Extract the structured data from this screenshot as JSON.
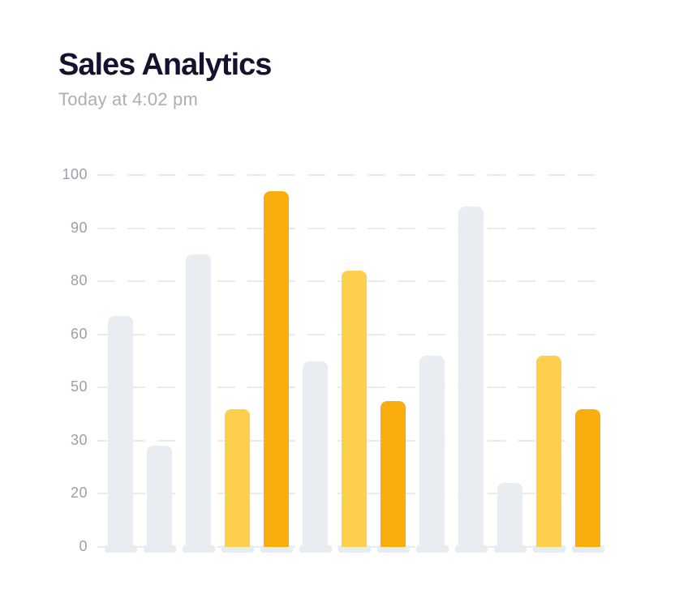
{
  "chart_data": {
    "type": "bar",
    "title": "Sales Analytics",
    "subtitle": "Today at 4:02 pm",
    "legend": "none",
    "grid": "dashed horizontal gridlines, on",
    "y_axis": {
      "tick_labels": [
        "100",
        "90",
        "80",
        "60",
        "50",
        "30",
        "20",
        "0"
      ],
      "tick_values": [
        100,
        90,
        80,
        60,
        50,
        30,
        20,
        0
      ],
      "evenly_spaced_ticks": true,
      "note": "ticks are evenly spaced but skip values 70 and 40",
      "range": [
        0,
        100
      ]
    },
    "x_axis": {
      "labels": []
    },
    "bars": [
      {
        "value": 67,
        "color_role": "muted"
      },
      {
        "value": 29,
        "color_role": "muted"
      },
      {
        "value": 85,
        "color_role": "muted"
      },
      {
        "value": 42,
        "color_role": "yellow"
      },
      {
        "value": 97,
        "color_role": "orange"
      },
      {
        "value": 55,
        "color_role": "muted"
      },
      {
        "value": 82,
        "color_role": "yellow"
      },
      {
        "value": 45,
        "color_role": "orange"
      },
      {
        "value": 56,
        "color_role": "muted"
      },
      {
        "value": 94,
        "color_role": "muted"
      },
      {
        "value": 22,
        "color_role": "muted"
      },
      {
        "value": 56,
        "color_role": "yellow"
      },
      {
        "value": 42,
        "color_role": "orange"
      }
    ],
    "colors": {
      "muted": "#E8EDF1",
      "yellow": "#FCCF4D",
      "orange": "#FAAE0D",
      "pedestal": "#E7ECF0",
      "gridline": "#E8ECEF",
      "axis_label": "#9AA0A7",
      "title": "#131330",
      "subtitle": "#ABAEB3",
      "background": "#FFFFFF"
    }
  }
}
